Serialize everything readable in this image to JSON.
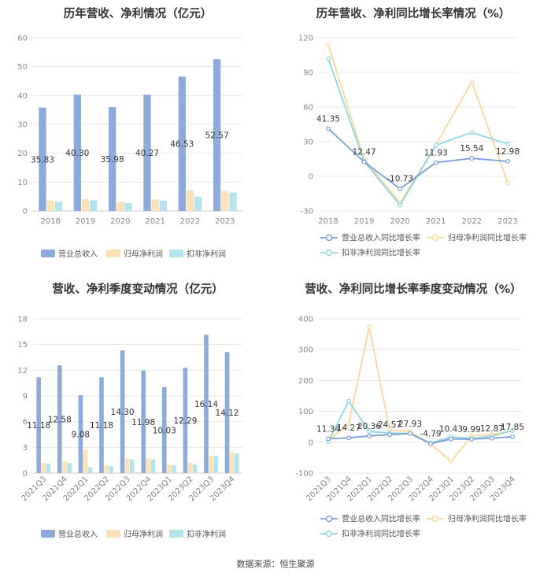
{
  "source": "数据来源：恒生聚源",
  "chart_data": [
    {
      "type": "bar",
      "title": "历年营收、净利情况（亿元）",
      "categories": [
        "2018",
        "2019",
        "2020",
        "2021",
        "2022",
        "2023"
      ],
      "series": [
        {
          "name": "营业总收入",
          "values": [
            35.83,
            40.3,
            35.98,
            40.27,
            46.53,
            52.57
          ],
          "labels": [
            "35.83",
            "40.30",
            "35.98",
            "40.27",
            "46.53",
            "52.57"
          ]
        },
        {
          "name": "归母净利润",
          "values": [
            3.6,
            4.1,
            3.2,
            4.0,
            7.2,
            6.9
          ]
        },
        {
          "name": "扣非净利润",
          "values": [
            3.2,
            3.7,
            2.8,
            3.6,
            5.0,
            6.4
          ]
        }
      ],
      "yticks": [
        "0",
        "10",
        "20",
        "30",
        "40",
        "50",
        "60"
      ],
      "ylim": [
        0,
        60
      ],
      "colors": [
        "#8eaadb",
        "#fbe2b8",
        "#b5e4ea"
      ]
    },
    {
      "type": "line",
      "title": "历年营收、净利同比增长率情况（%）",
      "categories": [
        "2018",
        "2019",
        "2020",
        "2021",
        "2022",
        "2023"
      ],
      "series": [
        {
          "name": "营业总收入同比增长率",
          "values": [
            41.35,
            12.47,
            -10.73,
            11.93,
            15.54,
            12.98
          ],
          "labels": [
            "41.35",
            "12.47",
            "-10.73",
            "11.93",
            "15.54",
            "12.98"
          ]
        },
        {
          "name": "归母净利润同比增长率",
          "values": [
            114,
            15,
            -23,
            27,
            82,
            -6
          ]
        },
        {
          "name": "扣非净利润同比增长率",
          "values": [
            102,
            13,
            -25,
            27,
            38,
            28
          ]
        }
      ],
      "yticks": [
        "-30",
        "0",
        "30",
        "60",
        "90",
        "120"
      ],
      "ylim": [
        -30,
        120
      ],
      "colors": [
        "#7b9fd6",
        "#fcd79a",
        "#8fd7e0"
      ]
    },
    {
      "type": "bar",
      "title": "营收、净利季度变动情况（亿元）",
      "categories": [
        "2021Q3",
        "2021Q4",
        "2022Q1",
        "2022Q2",
        "2022Q3",
        "2022Q4",
        "2023Q1",
        "2023Q2",
        "2023Q3",
        "2023Q4"
      ],
      "series": [
        {
          "name": "营业总收入",
          "values": [
            11.18,
            12.58,
            9.08,
            11.18,
            14.3,
            11.98,
            10.03,
            12.29,
            16.14,
            14.12
          ],
          "labels": [
            "11.18",
            "12.58",
            "9.08",
            "11.18",
            "14.30",
            "11.98",
            "10.03",
            "12.29",
            "16.14",
            "14.12"
          ]
        },
        {
          "name": "归母净利润",
          "values": [
            1.2,
            1.4,
            2.7,
            0.9,
            1.7,
            1.7,
            1.0,
            1.2,
            2.0,
            2.5
          ]
        },
        {
          "name": "扣非净利润",
          "values": [
            1.1,
            1.2,
            0.7,
            0.8,
            1.6,
            1.6,
            0.9,
            1.0,
            2.0,
            2.3
          ]
        }
      ],
      "yticks": [
        "0",
        "3",
        "6",
        "9",
        "12",
        "15",
        "18"
      ],
      "ylim": [
        0,
        18
      ],
      "colors": [
        "#8eaadb",
        "#fbe2b8",
        "#b5e4ea"
      ]
    },
    {
      "type": "line",
      "title": "营收、净利同比增长率季度变动情况（%）",
      "categories": [
        "2021Q3",
        "2021Q4",
        "2022Q1",
        "2022Q2",
        "2022Q3",
        "2022Q4",
        "2023Q1",
        "2023Q2",
        "2023Q3",
        "2023Q4"
      ],
      "series": [
        {
          "name": "营业总收入同比增长率",
          "values": [
            11.34,
            14.27,
            20.36,
            24.57,
            27.93,
            -4.79,
            10.43,
            9.99,
            12.87,
            17.85
          ],
          "labels": [
            "11.34",
            "14.27",
            "20.36",
            "24.57",
            "27.93",
            "-4.79",
            "10.43",
            "9.99",
            "12.87",
            "17.85"
          ]
        },
        {
          "name": "归母净利润同比增长率",
          "values": [
            5,
            60,
            373,
            40,
            35,
            -5,
            -62,
            20,
            25,
            37
          ]
        },
        {
          "name": "扣非净利润同比增长率",
          "values": [
            2,
            133,
            35,
            30,
            28,
            -3,
            18,
            12,
            20,
            38
          ]
        }
      ],
      "yticks": [
        "-100",
        "0",
        "100",
        "200",
        "300",
        "400"
      ],
      "ylim": [
        -100,
        400
      ],
      "colors": [
        "#7b9fd6",
        "#fcd79a",
        "#8fd7e0"
      ]
    }
  ]
}
